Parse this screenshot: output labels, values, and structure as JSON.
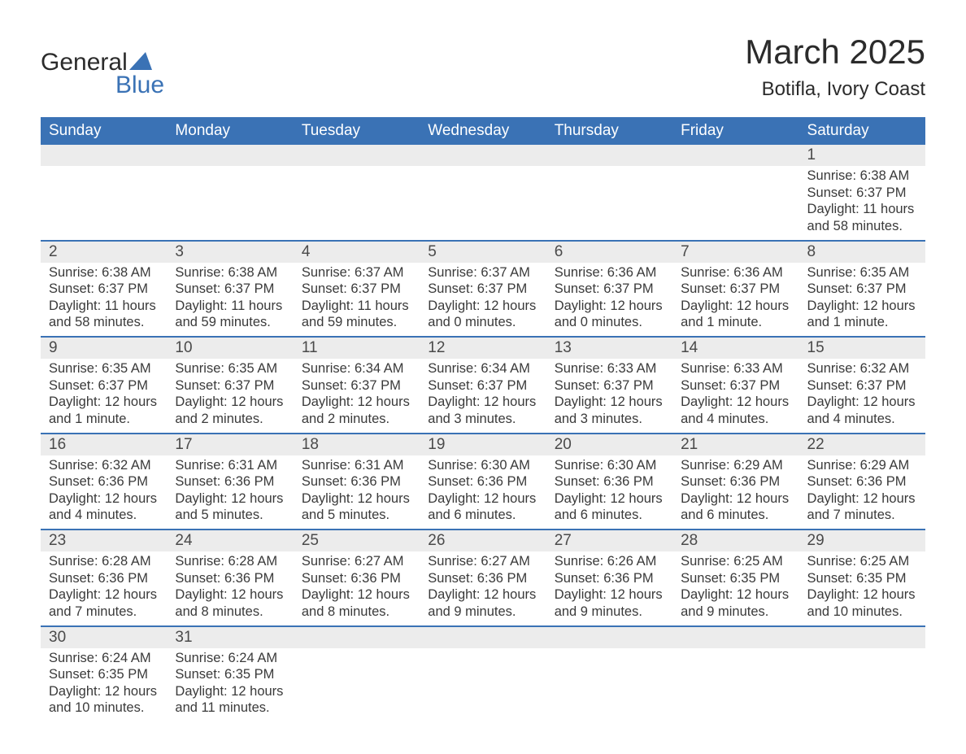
{
  "logo": {
    "text1": "General",
    "text2": "Blue",
    "sail_color": "#3a72b5"
  },
  "title": "March 2025",
  "subtitle": "Botifla, Ivory Coast",
  "colors": {
    "header_bg": "#3a72b5",
    "header_text": "#ffffff",
    "daynum_bg": "#ececec",
    "row_border": "#3a72b5",
    "body_text": "#3a3a3a"
  },
  "day_headers": [
    "Sunday",
    "Monday",
    "Tuesday",
    "Wednesday",
    "Thursday",
    "Friday",
    "Saturday"
  ],
  "weeks": [
    [
      null,
      null,
      null,
      null,
      null,
      null,
      {
        "n": "1",
        "sunrise": "6:38 AM",
        "sunset": "6:37 PM",
        "daylight": "11 hours and 58 minutes."
      }
    ],
    [
      {
        "n": "2",
        "sunrise": "6:38 AM",
        "sunset": "6:37 PM",
        "daylight": "11 hours and 58 minutes."
      },
      {
        "n": "3",
        "sunrise": "6:38 AM",
        "sunset": "6:37 PM",
        "daylight": "11 hours and 59 minutes."
      },
      {
        "n": "4",
        "sunrise": "6:37 AM",
        "sunset": "6:37 PM",
        "daylight": "11 hours and 59 minutes."
      },
      {
        "n": "5",
        "sunrise": "6:37 AM",
        "sunset": "6:37 PM",
        "daylight": "12 hours and 0 minutes."
      },
      {
        "n": "6",
        "sunrise": "6:36 AM",
        "sunset": "6:37 PM",
        "daylight": "12 hours and 0 minutes."
      },
      {
        "n": "7",
        "sunrise": "6:36 AM",
        "sunset": "6:37 PM",
        "daylight": "12 hours and 1 minute."
      },
      {
        "n": "8",
        "sunrise": "6:35 AM",
        "sunset": "6:37 PM",
        "daylight": "12 hours and 1 minute."
      }
    ],
    [
      {
        "n": "9",
        "sunrise": "6:35 AM",
        "sunset": "6:37 PM",
        "daylight": "12 hours and 1 minute."
      },
      {
        "n": "10",
        "sunrise": "6:35 AM",
        "sunset": "6:37 PM",
        "daylight": "12 hours and 2 minutes."
      },
      {
        "n": "11",
        "sunrise": "6:34 AM",
        "sunset": "6:37 PM",
        "daylight": "12 hours and 2 minutes."
      },
      {
        "n": "12",
        "sunrise": "6:34 AM",
        "sunset": "6:37 PM",
        "daylight": "12 hours and 3 minutes."
      },
      {
        "n": "13",
        "sunrise": "6:33 AM",
        "sunset": "6:37 PM",
        "daylight": "12 hours and 3 minutes."
      },
      {
        "n": "14",
        "sunrise": "6:33 AM",
        "sunset": "6:37 PM",
        "daylight": "12 hours and 4 minutes."
      },
      {
        "n": "15",
        "sunrise": "6:32 AM",
        "sunset": "6:37 PM",
        "daylight": "12 hours and 4 minutes."
      }
    ],
    [
      {
        "n": "16",
        "sunrise": "6:32 AM",
        "sunset": "6:36 PM",
        "daylight": "12 hours and 4 minutes."
      },
      {
        "n": "17",
        "sunrise": "6:31 AM",
        "sunset": "6:36 PM",
        "daylight": "12 hours and 5 minutes."
      },
      {
        "n": "18",
        "sunrise": "6:31 AM",
        "sunset": "6:36 PM",
        "daylight": "12 hours and 5 minutes."
      },
      {
        "n": "19",
        "sunrise": "6:30 AM",
        "sunset": "6:36 PM",
        "daylight": "12 hours and 6 minutes."
      },
      {
        "n": "20",
        "sunrise": "6:30 AM",
        "sunset": "6:36 PM",
        "daylight": "12 hours and 6 minutes."
      },
      {
        "n": "21",
        "sunrise": "6:29 AM",
        "sunset": "6:36 PM",
        "daylight": "12 hours and 6 minutes."
      },
      {
        "n": "22",
        "sunrise": "6:29 AM",
        "sunset": "6:36 PM",
        "daylight": "12 hours and 7 minutes."
      }
    ],
    [
      {
        "n": "23",
        "sunrise": "6:28 AM",
        "sunset": "6:36 PM",
        "daylight": "12 hours and 7 minutes."
      },
      {
        "n": "24",
        "sunrise": "6:28 AM",
        "sunset": "6:36 PM",
        "daylight": "12 hours and 8 minutes."
      },
      {
        "n": "25",
        "sunrise": "6:27 AM",
        "sunset": "6:36 PM",
        "daylight": "12 hours and 8 minutes."
      },
      {
        "n": "26",
        "sunrise": "6:27 AM",
        "sunset": "6:36 PM",
        "daylight": "12 hours and 9 minutes."
      },
      {
        "n": "27",
        "sunrise": "6:26 AM",
        "sunset": "6:36 PM",
        "daylight": "12 hours and 9 minutes."
      },
      {
        "n": "28",
        "sunrise": "6:25 AM",
        "sunset": "6:35 PM",
        "daylight": "12 hours and 9 minutes."
      },
      {
        "n": "29",
        "sunrise": "6:25 AM",
        "sunset": "6:35 PM",
        "daylight": "12 hours and 10 minutes."
      }
    ],
    [
      {
        "n": "30",
        "sunrise": "6:24 AM",
        "sunset": "6:35 PM",
        "daylight": "12 hours and 10 minutes."
      },
      {
        "n": "31",
        "sunrise": "6:24 AM",
        "sunset": "6:35 PM",
        "daylight": "12 hours and 11 minutes."
      },
      null,
      null,
      null,
      null,
      null
    ]
  ],
  "labels": {
    "sunrise": "Sunrise: ",
    "sunset": "Sunset: ",
    "daylight": "Daylight: "
  }
}
